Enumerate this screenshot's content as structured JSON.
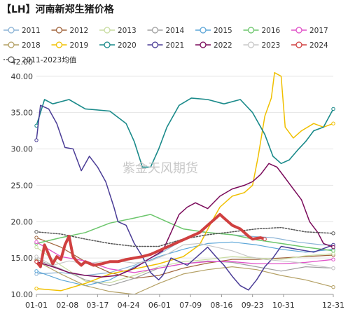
{
  "chart_data": {
    "type": "line",
    "title": "【LH】河南新郑生猪价格",
    "watermark": "紫金天风期货",
    "ylim": [
      10,
      42
    ],
    "yticks": [
      "10.00",
      "15.00",
      "20.00",
      "25.00",
      "30.00",
      "35.00",
      "40.00"
    ],
    "xticks": [
      "01-01",
      "02-08",
      "03-17",
      "04-24",
      "06-01",
      "07-09",
      "08-16",
      "09-23",
      "10-31",
      "12-31"
    ],
    "xtick_days": [
      0,
      38,
      75,
      113,
      151,
      189,
      227,
      265,
      303,
      364
    ],
    "series": [
      {
        "name": "2011",
        "color": "#8cb4d6",
        "width": 1.2,
        "dash": "",
        "points": [
          [
            0,
            12.8
          ],
          [
            30,
            13.0
          ],
          [
            60,
            12.6
          ],
          [
            90,
            13.0
          ],
          [
            120,
            14.0
          ],
          [
            150,
            15.5
          ],
          [
            180,
            17.5
          ],
          [
            200,
            18.6
          ],
          [
            230,
            18.3
          ],
          [
            260,
            18.0
          ],
          [
            290,
            17.8
          ],
          [
            320,
            17.2
          ],
          [
            350,
            16.8
          ],
          [
            364,
            16.8
          ]
        ]
      },
      {
        "name": "2012",
        "color": "#a0643c",
        "width": 1.2,
        "dash": "",
        "points": [
          [
            0,
            17.8
          ],
          [
            30,
            16.5
          ],
          [
            60,
            14.5
          ],
          [
            90,
            13.0
          ],
          [
            120,
            12.2
          ],
          [
            150,
            12.6
          ],
          [
            180,
            13.6
          ],
          [
            210,
            14.3
          ],
          [
            240,
            14.8
          ],
          [
            270,
            14.8
          ],
          [
            300,
            15.0
          ],
          [
            330,
            15.2
          ],
          [
            364,
            15.4
          ]
        ]
      },
      {
        "name": "2013",
        "color": "#c8dca0",
        "width": 1.2,
        "dash": "",
        "points": [
          [
            0,
            16.5
          ],
          [
            30,
            14.0
          ],
          [
            60,
            11.8
          ],
          [
            90,
            11.6
          ],
          [
            120,
            12.6
          ],
          [
            150,
            13.8
          ],
          [
            180,
            14.5
          ],
          [
            210,
            14.8
          ],
          [
            240,
            15.2
          ],
          [
            270,
            15.0
          ],
          [
            300,
            14.8
          ],
          [
            330,
            15.3
          ],
          [
            364,
            15.6
          ]
        ]
      },
      {
        "name": "2014",
        "color": "#a0a0a0",
        "width": 1.2,
        "dash": "",
        "points": [
          [
            0,
            14.8
          ],
          [
            30,
            13.5
          ],
          [
            60,
            12.0
          ],
          [
            90,
            11.2
          ],
          [
            120,
            12.2
          ],
          [
            150,
            13.6
          ],
          [
            180,
            14.2
          ],
          [
            210,
            14.6
          ],
          [
            240,
            14.4
          ],
          [
            270,
            13.8
          ],
          [
            300,
            13.2
          ],
          [
            330,
            13.8
          ],
          [
            364,
            13.6
          ]
        ]
      },
      {
        "name": "2015",
        "color": "#5ca6d8",
        "width": 1.2,
        "dash": "",
        "points": [
          [
            0,
            13.2
          ],
          [
            30,
            12.0
          ],
          [
            60,
            11.2
          ],
          [
            90,
            12.0
          ],
          [
            120,
            13.8
          ],
          [
            150,
            15.2
          ],
          [
            180,
            16.2
          ],
          [
            210,
            17.0
          ],
          [
            240,
            17.2
          ],
          [
            270,
            16.8
          ],
          [
            300,
            16.2
          ],
          [
            330,
            15.8
          ],
          [
            364,
            16.2
          ]
        ]
      },
      {
        "name": "2016",
        "color": "#6cc66c",
        "width": 1.5,
        "dash": "",
        "points": [
          [
            0,
            17.0
          ],
          [
            30,
            17.8
          ],
          [
            60,
            18.5
          ],
          [
            90,
            19.8
          ],
          [
            120,
            20.5
          ],
          [
            140,
            21.0
          ],
          [
            160,
            20.0
          ],
          [
            180,
            19.0
          ],
          [
            210,
            18.5
          ],
          [
            240,
            18.2
          ],
          [
            270,
            17.5
          ],
          [
            300,
            17.0
          ],
          [
            330,
            16.5
          ],
          [
            364,
            16.0
          ]
        ]
      },
      {
        "name": "2017",
        "color": "#e050c8",
        "width": 1.3,
        "dash": "",
        "points": [
          [
            0,
            17.2
          ],
          [
            30,
            15.2
          ],
          [
            60,
            14.6
          ],
          [
            90,
            13.5
          ],
          [
            120,
            13.0
          ],
          [
            150,
            13.6
          ],
          [
            180,
            14.2
          ],
          [
            210,
            14.5
          ],
          [
            240,
            14.5
          ],
          [
            270,
            14.2
          ],
          [
            300,
            14.2
          ],
          [
            330,
            14.4
          ],
          [
            364,
            14.8
          ]
        ]
      },
      {
        "name": "2018",
        "color": "#b4a064",
        "width": 1.2,
        "dash": "",
        "points": [
          [
            0,
            14.6
          ],
          [
            30,
            12.8
          ],
          [
            60,
            11.2
          ],
          [
            90,
            10.4
          ],
          [
            120,
            10.0
          ],
          [
            150,
            11.5
          ],
          [
            180,
            12.8
          ],
          [
            210,
            13.4
          ],
          [
            240,
            13.8
          ],
          [
            270,
            13.4
          ],
          [
            300,
            12.6
          ],
          [
            330,
            12.0
          ],
          [
            364,
            11.0
          ]
        ]
      },
      {
        "name": "2019",
        "color": "#f0c000",
        "width": 1.5,
        "dash": "",
        "points": [
          [
            0,
            10.8
          ],
          [
            30,
            10.5
          ],
          [
            60,
            11.5
          ],
          [
            90,
            12.8
          ],
          [
            120,
            13.5
          ],
          [
            150,
            14.2
          ],
          [
            180,
            15.2
          ],
          [
            200,
            16.8
          ],
          [
            215,
            20.0
          ],
          [
            225,
            22.0
          ],
          [
            240,
            23.5
          ],
          [
            255,
            24.0
          ],
          [
            265,
            25.0
          ],
          [
            272,
            29.0
          ],
          [
            280,
            34.5
          ],
          [
            288,
            37.0
          ],
          [
            292,
            40.5
          ],
          [
            300,
            40.0
          ],
          [
            305,
            33.0
          ],
          [
            315,
            31.5
          ],
          [
            325,
            32.5
          ],
          [
            340,
            33.5
          ],
          [
            352,
            33.0
          ],
          [
            364,
            33.5
          ]
        ]
      },
      {
        "name": "2020",
        "color": "#1a8a8a",
        "width": 1.6,
        "dash": "",
        "points": [
          [
            0,
            33.2
          ],
          [
            10,
            36.8
          ],
          [
            20,
            36.2
          ],
          [
            40,
            36.8
          ],
          [
            60,
            35.5
          ],
          [
            90,
            35.2
          ],
          [
            110,
            33.5
          ],
          [
            120,
            31.0
          ],
          [
            130,
            27.5
          ],
          [
            140,
            27.5
          ],
          [
            150,
            30.0
          ],
          [
            160,
            33.0
          ],
          [
            175,
            36.0
          ],
          [
            190,
            37.0
          ],
          [
            210,
            36.8
          ],
          [
            230,
            36.2
          ],
          [
            250,
            36.8
          ],
          [
            265,
            35.0
          ],
          [
            280,
            32.0
          ],
          [
            290,
            29.0
          ],
          [
            300,
            28.0
          ],
          [
            310,
            28.5
          ],
          [
            320,
            29.8
          ],
          [
            330,
            31.0
          ],
          [
            340,
            32.5
          ],
          [
            352,
            33.0
          ],
          [
            364,
            35.5
          ]
        ]
      },
      {
        "name": "2021",
        "color": "#4a3c96",
        "width": 1.5,
        "dash": "",
        "points": [
          [
            0,
            31.2
          ],
          [
            5,
            36.0
          ],
          [
            15,
            35.5
          ],
          [
            25,
            33.5
          ],
          [
            35,
            30.2
          ],
          [
            45,
            30.0
          ],
          [
            55,
            27.0
          ],
          [
            65,
            29.0
          ],
          [
            75,
            27.5
          ],
          [
            85,
            25.5
          ],
          [
            95,
            22.0
          ],
          [
            100,
            20.0
          ],
          [
            110,
            19.5
          ],
          [
            120,
            17.0
          ],
          [
            130,
            15.2
          ],
          [
            140,
            13.0
          ],
          [
            150,
            12.0
          ],
          [
            155,
            12.6
          ],
          [
            165,
            15.0
          ],
          [
            175,
            14.5
          ],
          [
            185,
            14.0
          ],
          [
            200,
            15.5
          ],
          [
            210,
            16.5
          ],
          [
            220,
            15.2
          ],
          [
            230,
            14.0
          ],
          [
            240,
            12.5
          ],
          [
            250,
            11.2
          ],
          [
            260,
            10.6
          ],
          [
            270,
            12.0
          ],
          [
            280,
            13.8
          ],
          [
            290,
            15.0
          ],
          [
            300,
            16.6
          ],
          [
            320,
            16.2
          ],
          [
            340,
            15.8
          ],
          [
            364,
            16.8
          ]
        ]
      },
      {
        "name": "2022",
        "color": "#7a0a5a",
        "width": 1.5,
        "dash": "",
        "points": [
          [
            0,
            14.5
          ],
          [
            20,
            13.8
          ],
          [
            40,
            13.0
          ],
          [
            60,
            12.6
          ],
          [
            80,
            12.4
          ],
          [
            100,
            12.6
          ],
          [
            120,
            13.6
          ],
          [
            140,
            15.0
          ],
          [
            155,
            16.0
          ],
          [
            165,
            18.5
          ],
          [
            175,
            21.0
          ],
          [
            185,
            22.0
          ],
          [
            195,
            22.6
          ],
          [
            210,
            21.8
          ],
          [
            225,
            23.5
          ],
          [
            240,
            24.5
          ],
          [
            255,
            25.0
          ],
          [
            265,
            25.5
          ],
          [
            275,
            26.5
          ],
          [
            285,
            28.0
          ],
          [
            295,
            27.5
          ],
          [
            305,
            26.0
          ],
          [
            315,
            24.5
          ],
          [
            325,
            23.0
          ],
          [
            335,
            20.0
          ],
          [
            345,
            18.5
          ],
          [
            352,
            17.0
          ],
          [
            364,
            16.5
          ]
        ]
      },
      {
        "name": "2023",
        "color": "#c8c8c8",
        "width": 1.2,
        "dash": "",
        "points": [
          [
            0,
            15.2
          ],
          [
            20,
            14.0
          ],
          [
            40,
            14.6
          ],
          [
            60,
            14.2
          ],
          [
            80,
            14.5
          ],
          [
            100,
            14.6
          ],
          [
            120,
            14.3
          ],
          [
            140,
            14.6
          ],
          [
            160,
            15.5
          ],
          [
            180,
            16.8
          ],
          [
            200,
            17.0
          ],
          [
            220,
            16.5
          ],
          [
            240,
            16.0
          ],
          [
            260,
            15.2
          ],
          [
            280,
            14.8
          ],
          [
            300,
            14.6
          ],
          [
            320,
            14.4
          ],
          [
            340,
            14.0
          ],
          [
            364,
            13.6
          ]
        ]
      },
      {
        "name": "2024",
        "color": "#d04040",
        "width": 4.0,
        "dash": "",
        "points": [
          [
            0,
            14.5
          ],
          [
            5,
            13.8
          ],
          [
            10,
            16.8
          ],
          [
            15,
            15.5
          ],
          [
            20,
            14.2
          ],
          [
            25,
            15.2
          ],
          [
            30,
            14.8
          ],
          [
            35,
            16.8
          ],
          [
            40,
            18.0
          ],
          [
            45,
            15.2
          ],
          [
            50,
            14.5
          ],
          [
            55,
            14.0
          ],
          [
            60,
            14.5
          ],
          [
            70,
            14.0
          ],
          [
            80,
            14.2
          ],
          [
            90,
            14.5
          ],
          [
            100,
            14.5
          ],
          [
            110,
            14.8
          ],
          [
            120,
            15.0
          ],
          [
            130,
            15.2
          ],
          [
            140,
            15.5
          ],
          [
            150,
            16.0
          ],
          [
            160,
            16.5
          ],
          [
            170,
            17.0
          ],
          [
            180,
            17.5
          ],
          [
            190,
            18.0
          ],
          [
            200,
            18.5
          ],
          [
            210,
            19.5
          ],
          [
            220,
            20.5
          ],
          [
            225,
            21.0
          ],
          [
            230,
            20.5
          ],
          [
            240,
            19.5
          ],
          [
            250,
            19.0
          ],
          [
            260,
            18.0
          ],
          [
            265,
            17.6
          ],
          [
            275,
            17.8
          ],
          [
            280,
            17.6
          ]
        ]
      },
      {
        "name": "2011-2023均值",
        "color": "#555555",
        "width": 1.5,
        "dash": "2,2",
        "points": [
          [
            0,
            18.6
          ],
          [
            30,
            18.3
          ],
          [
            60,
            17.6
          ],
          [
            90,
            17.0
          ],
          [
            120,
            16.6
          ],
          [
            150,
            16.6
          ],
          [
            180,
            17.6
          ],
          [
            210,
            18.2
          ],
          [
            240,
            18.6
          ],
          [
            270,
            19.0
          ],
          [
            300,
            19.2
          ],
          [
            330,
            18.6
          ],
          [
            364,
            18.4
          ]
        ]
      }
    ]
  }
}
